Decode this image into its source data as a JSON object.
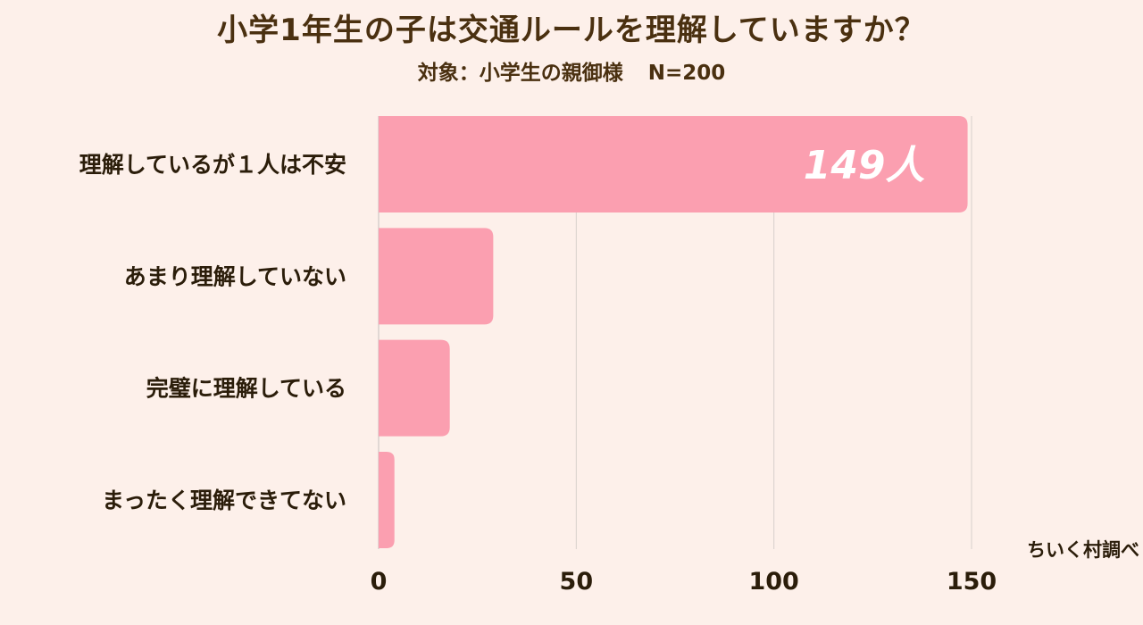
{
  "title": "小学1年生の子は交通ルールを理解していますか？",
  "subtitle": {
    "target": "対象：小学生の親御様",
    "n": "N=200"
  },
  "credit": "ちいく村調べ",
  "colors": {
    "background": "#fdf0ea",
    "bar": "#fb9fb0",
    "grid": "#d8d0cc",
    "text": "#2b1d0a",
    "bar_label": "#ffffff"
  },
  "chart_data": {
    "type": "bar",
    "orientation": "horizontal",
    "categories": [
      "理解しているが１人は不安",
      "あまり理解していない",
      "完璧に理解している",
      "まったく理解できてない"
    ],
    "values": [
      149,
      29,
      18,
      4
    ],
    "data_labels": [
      "149人",
      "",
      "",
      ""
    ],
    "xticks": [
      "0",
      "50",
      "100",
      "150"
    ],
    "xlim": [
      0,
      150
    ],
    "grid": true
  }
}
